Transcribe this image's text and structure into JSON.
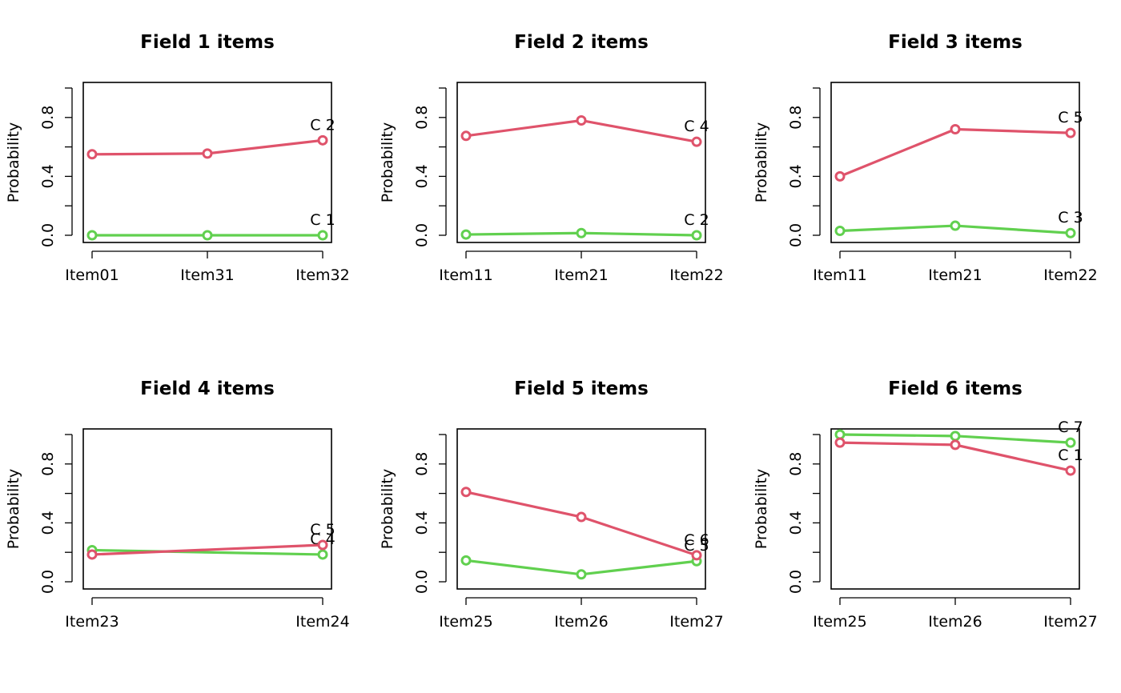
{
  "colors": {
    "series1": "#DF536B",
    "series2": "#61D04F",
    "axis": "#000000"
  },
  "chart_data": [
    {
      "type": "line",
      "title": "Field 1 items",
      "ylabel": "Probability",
      "categories": [
        "Item01",
        "Item31",
        "Item32"
      ],
      "ylim": [
        0,
        1
      ],
      "yticks": [
        0.0,
        0.4,
        0.8
      ],
      "yticks_labels": [
        "0.0",
        "0.4",
        "0.8"
      ],
      "series": [
        {
          "values": [
            0.55,
            0.555,
            0.645
          ],
          "end_label": "C 2",
          "color_key": "series1"
        },
        {
          "values": [
            0.0,
            0.0,
            0.0
          ],
          "end_label": "C 1",
          "color_key": "series2"
        }
      ]
    },
    {
      "type": "line",
      "title": "Field 2 items",
      "ylabel": "Probability",
      "categories": [
        "Item11",
        "Item21",
        "Item22"
      ],
      "ylim": [
        0,
        1
      ],
      "yticks": [
        0.0,
        0.4,
        0.8
      ],
      "yticks_labels": [
        "0.0",
        "0.4",
        "0.8"
      ],
      "series": [
        {
          "values": [
            0.675,
            0.78,
            0.635
          ],
          "end_label": "C 4",
          "color_key": "series1"
        },
        {
          "values": [
            0.005,
            0.015,
            0.0
          ],
          "end_label": "C 2",
          "color_key": "series2"
        }
      ]
    },
    {
      "type": "line",
      "title": "Field 3 items",
      "ylabel": "Probability",
      "categories": [
        "Item11",
        "Item21",
        "Item22"
      ],
      "ylim": [
        0,
        1
      ],
      "yticks": [
        0.0,
        0.4,
        0.8
      ],
      "yticks_labels": [
        "0.0",
        "0.4",
        "0.8"
      ],
      "series": [
        {
          "values": [
            0.4,
            0.72,
            0.695
          ],
          "end_label": "C 5",
          "color_key": "series1"
        },
        {
          "values": [
            0.03,
            0.065,
            0.015
          ],
          "end_label": "C 3",
          "color_key": "series2"
        }
      ]
    },
    {
      "type": "line",
      "title": "Field 4 items",
      "ylabel": "Probability",
      "categories": [
        "Item23",
        "Item24"
      ],
      "ylim": [
        0,
        1
      ],
      "yticks": [
        0.0,
        0.4,
        0.8
      ],
      "yticks_labels": [
        "0.0",
        "0.4",
        "0.8"
      ],
      "series": [
        {
          "values": [
            0.185,
            0.25
          ],
          "end_label": "C 5",
          "color_key": "series1"
        },
        {
          "values": [
            0.215,
            0.185
          ],
          "end_label": "C 4",
          "color_key": "series2"
        }
      ]
    },
    {
      "type": "line",
      "title": "Field 5 items",
      "ylabel": "Probability",
      "categories": [
        "Item25",
        "Item26",
        "Item27"
      ],
      "ylim": [
        0,
        1
      ],
      "yticks": [
        0.0,
        0.4,
        0.8
      ],
      "yticks_labels": [
        "0.0",
        "0.4",
        "0.8"
      ],
      "series": [
        {
          "values": [
            0.61,
            0.44,
            0.18
          ],
          "end_label": "C 6",
          "color_key": "series1"
        },
        {
          "values": [
            0.145,
            0.05,
            0.14
          ],
          "end_label": "C 5",
          "color_key": "series2"
        }
      ]
    },
    {
      "type": "line",
      "title": "Field 6 items",
      "ylabel": "Probability",
      "categories": [
        "Item25",
        "Item26",
        "Item27"
      ],
      "ylim": [
        0,
        1
      ],
      "yticks": [
        0.0,
        0.4,
        0.8
      ],
      "yticks_labels": [
        "0.0",
        "0.4",
        "0.8"
      ],
      "series": [
        {
          "values": [
            0.945,
            0.93,
            0.755
          ],
          "end_label": "C 1",
          "color_key": "series1"
        },
        {
          "values": [
            1.0,
            0.99,
            0.945
          ],
          "end_label": "C 7",
          "color_key": "series2"
        }
      ]
    }
  ]
}
